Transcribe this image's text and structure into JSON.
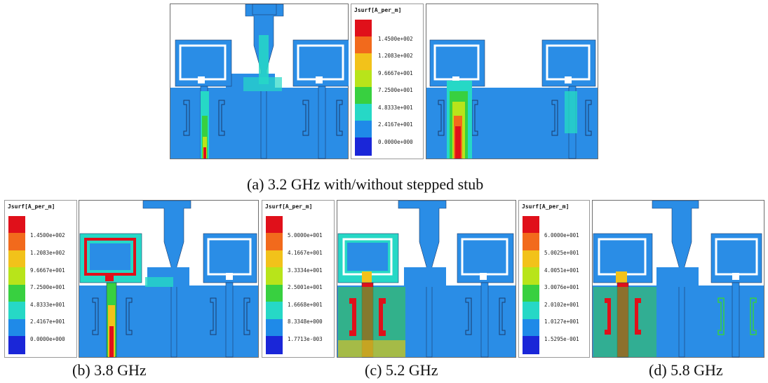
{
  "captions": {
    "a": "(a) 3.2 GHz with/without stepped stub",
    "b": "(b) 3.8 GHz",
    "c": "(c) 5.2 GHz",
    "d": "(d) 5.8 GHz"
  },
  "legends": {
    "top": {
      "title": "Jsurf[A_per_m]",
      "values": [
        "1.4500e+002",
        "1.2083e+002",
        "9.6667e+001",
        "7.2500e+001",
        "4.8333e+001",
        "2.4167e+001",
        "0.0000e+000"
      ]
    },
    "b": {
      "title": "Jsurf[A_per_m]",
      "values": [
        "1.4500e+002",
        "1.2083e+002",
        "9.6667e+001",
        "7.2500e+001",
        "4.8333e+001",
        "2.4167e+001",
        "0.0000e+000"
      ]
    },
    "c": {
      "title": "Jsurf[A_per_m]",
      "values": [
        "5.0000e+001",
        "4.1667e+001",
        "3.3334e+001",
        "2.5001e+001",
        "1.6668e+001",
        "8.3348e+000",
        "1.7713e-003"
      ]
    },
    "d": {
      "title": "Jsurf[A_per_m]",
      "values": [
        "6.0000e+001",
        "5.0025e+001",
        "4.0051e+001",
        "3.0076e+001",
        "2.0102e+001",
        "1.0127e+001",
        "1.5295e-001"
      ]
    }
  },
  "colorscale": [
    "#e0101a",
    "#f26a1c",
    "#f2c21a",
    "#b8e41a",
    "#38d040",
    "#26d8c6",
    "#1f8ae8",
    "#1a26d8"
  ],
  "colors": {
    "substrate": "#ffffff",
    "metal": "#2a8de6",
    "outline": "#1b3a6b",
    "frame": "#6e6e6e"
  }
}
